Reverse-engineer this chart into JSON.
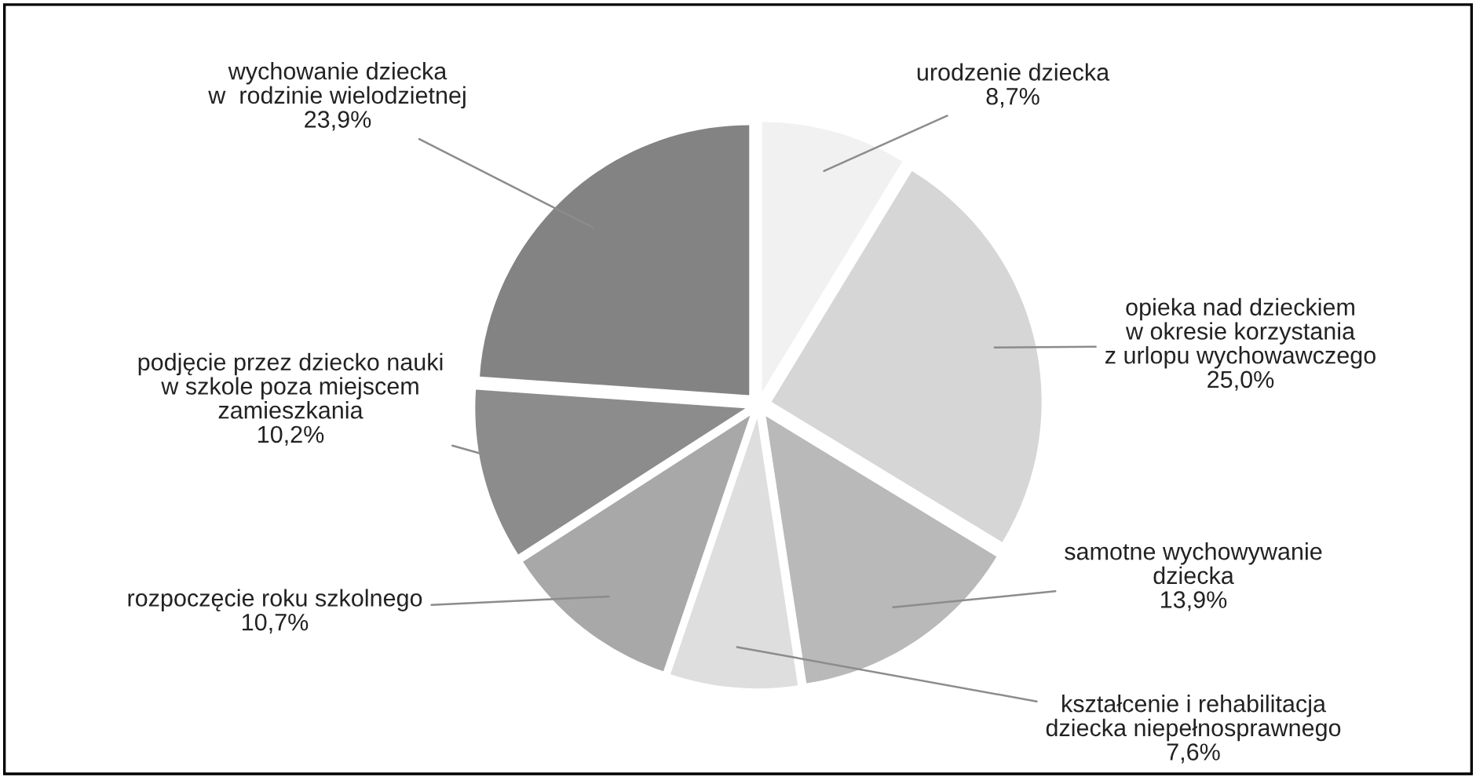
{
  "chart_data": {
    "type": "pie",
    "categories": [
      "urodzenie dziecka",
      "opieka nad dzieckiem\nw okresie korzystania\nz urlopu wychowawczego",
      "samotne wychowywanie\ndziecka",
      "kształcenie i rehabilitacja\ndziecka niepełnosprawnego",
      "rozpoczęcie roku szkolnego",
      "podjęcie przez dziecko nauki\nw szkole poza miejscem\nzamieszkania",
      "wychowanie dziecka\nw  rodzinie wielodzietnej"
    ],
    "values": [
      8.7,
      25.0,
      13.9,
      7.6,
      10.7,
      10.2,
      23.9
    ],
    "value_labels": [
      "8,7%",
      "25,0%",
      "13,9%",
      "7,6%",
      "10,7%",
      "10,2%",
      "23,9%"
    ],
    "colors": [
      "#f1f1f1",
      "#d6d6d6",
      "#b9b9b9",
      "#dedede",
      "#a8a8a8",
      "#8c8c8c",
      "#838383"
    ]
  }
}
